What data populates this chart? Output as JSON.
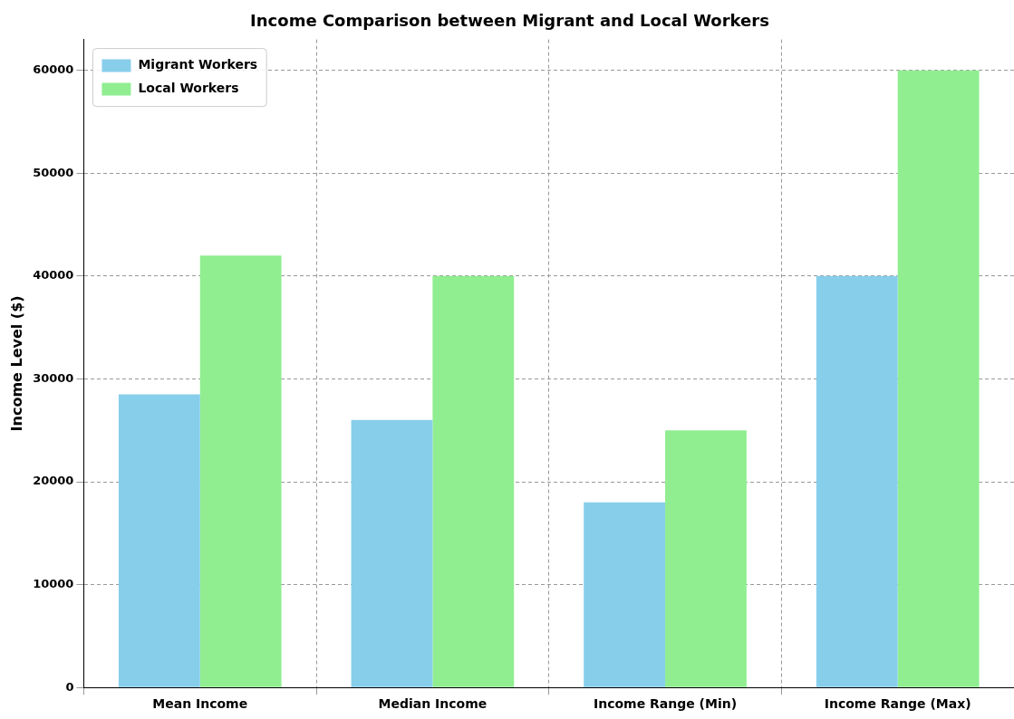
{
  "chart_data": {
    "type": "bar",
    "title": "Income Comparison between Migrant and Local Workers",
    "ylabel": "Income Level ($)",
    "categories": [
      "Mean Income",
      "Median Income",
      "Income Range (Min)",
      "Income Range (Max)"
    ],
    "series": [
      {
        "name": "Migrant Workers",
        "color": "#87ceeb",
        "values": [
          28500,
          26000,
          18000,
          40000
        ]
      },
      {
        "name": "Local Workers",
        "color": "#90ee90",
        "values": [
          42000,
          40000,
          25000,
          60000
        ]
      }
    ],
    "ylim": [
      0,
      63000
    ],
    "yticks": [
      0,
      10000,
      20000,
      30000,
      40000,
      50000,
      60000
    ],
    "grid": true,
    "legend": "top left"
  }
}
